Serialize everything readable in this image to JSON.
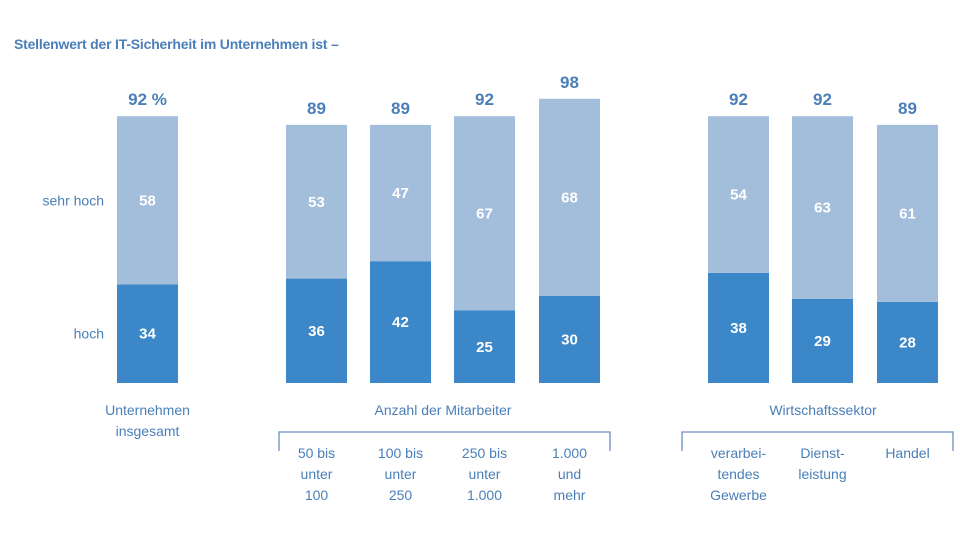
{
  "chart_data": {
    "type": "bar",
    "stacked": true,
    "title": "Stellenwert der IT-Sicherheit im Unternehmen ist –",
    "ylim": [
      0,
      100
    ],
    "legend_position": "left",
    "series_colors": {
      "hoch": "#3b87c8",
      "sehr hoch": "#a3bedb"
    },
    "series": [
      {
        "name": "hoch",
        "values": [
          34,
          36,
          42,
          25,
          30,
          38,
          29,
          28
        ]
      },
      {
        "name": "sehr hoch",
        "values": [
          58,
          53,
          47,
          67,
          68,
          54,
          63,
          61
        ]
      }
    ],
    "totals": [
      "92 %",
      "89",
      "89",
      "92",
      "98",
      "92",
      "92",
      "89"
    ],
    "categories": [
      {
        "lines": [
          "Unternehmen",
          "insgesamt"
        ],
        "group": 0
      },
      {
        "lines": [
          "50 bis",
          "unter",
          "100"
        ],
        "group": 1
      },
      {
        "lines": [
          "100 bis",
          "unter",
          "250"
        ],
        "group": 1
      },
      {
        "lines": [
          "250 bis",
          "unter",
          "1.000"
        ],
        "group": 1
      },
      {
        "lines": [
          "1.000",
          "und",
          "mehr"
        ],
        "group": 1
      },
      {
        "lines": [
          "verarbei-",
          "tendes",
          "Gewerbe"
        ],
        "group": 2
      },
      {
        "lines": [
          "Dienst-",
          "leistung"
        ],
        "group": 2
      },
      {
        "lines": [
          "Handel"
        ],
        "group": 2
      }
    ],
    "groups": [
      "",
      "Anzahl der Mitarbeiter",
      "Wirtschaftssektor"
    ]
  }
}
